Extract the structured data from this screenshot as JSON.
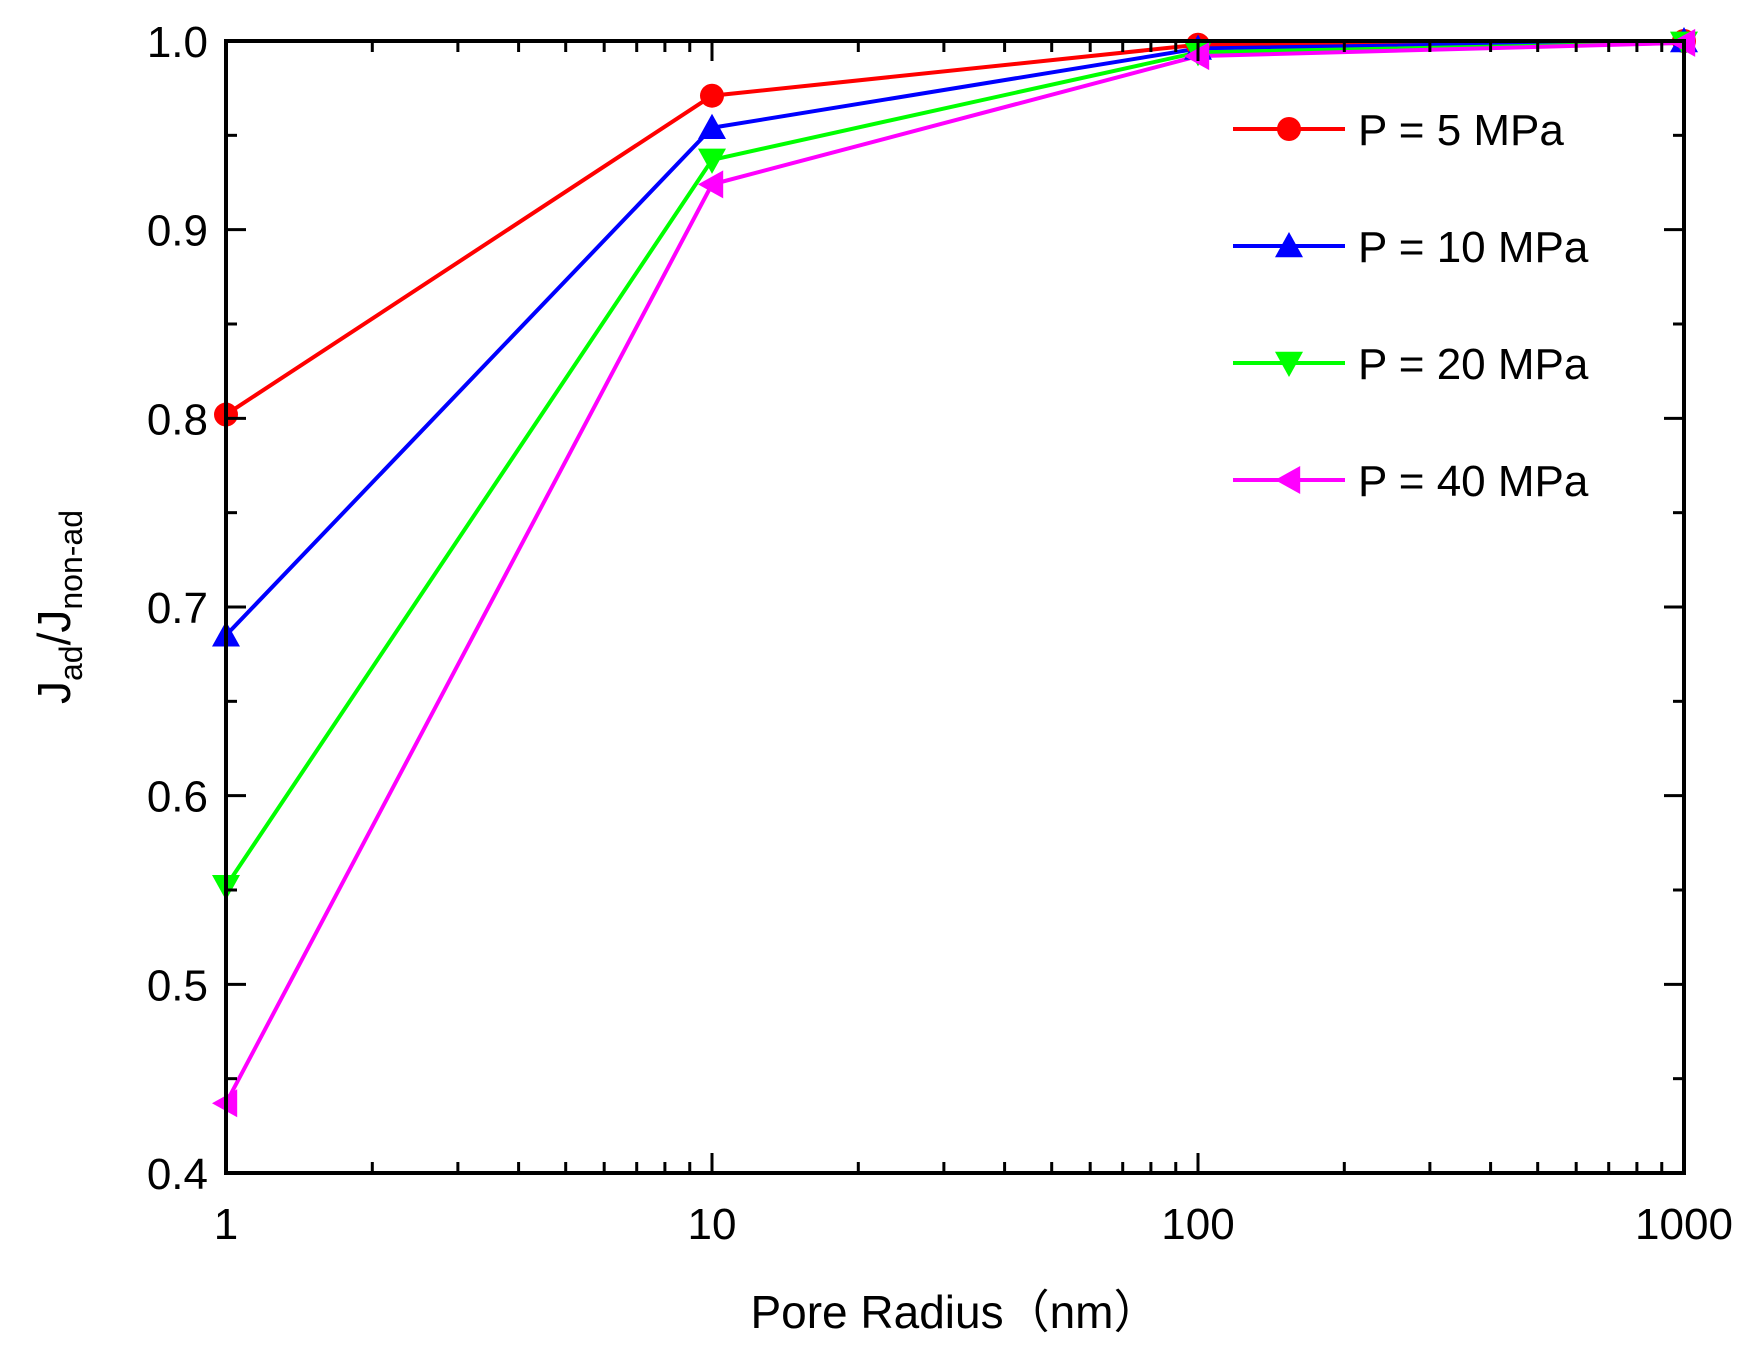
{
  "chart_data": {
    "type": "line",
    "title": "",
    "xlabel": "Pore Radius（nm）",
    "ylabel_main": "J",
    "ylabel_sub1": "ad",
    "ylabel_sep": "/J",
    "ylabel_sub2": "non-ad",
    "xscale": "log",
    "xlim": [
      1,
      1000
    ],
    "ylim": [
      0.4,
      1.0
    ],
    "x": [
      1,
      10,
      100,
      1000
    ],
    "x_ticks": [
      1,
      10,
      100,
      1000
    ],
    "x_tick_labels": [
      "1",
      "10",
      "100",
      "1000"
    ],
    "y_ticks": [
      0.4,
      0.5,
      0.6,
      0.7,
      0.8,
      0.9,
      1.0
    ],
    "y_tick_labels": [
      "0.4",
      "0.5",
      "0.6",
      "0.7",
      "0.8",
      "0.9",
      "1.0"
    ],
    "legend_position": "top-right",
    "grid": false,
    "series": [
      {
        "name": "P = 5 MPa",
        "color": "#ff0000",
        "marker": "circle",
        "values": [
          0.802,
          0.971,
          0.998,
          1.0
        ]
      },
      {
        "name": "P = 10 MPa",
        "color": "#0000ff",
        "marker": "triangle-up",
        "values": [
          0.685,
          0.954,
          0.996,
          1.0
        ]
      },
      {
        "name": "P = 20 MPa",
        "color": "#00ff00",
        "marker": "triangle-down",
        "values": [
          0.552,
          0.937,
          0.994,
          0.999
        ]
      },
      {
        "name": "P = 40 MPa",
        "color": "#ff00ff",
        "marker": "triangle-left",
        "values": [
          0.437,
          0.924,
          0.992,
          0.999
        ]
      }
    ]
  }
}
